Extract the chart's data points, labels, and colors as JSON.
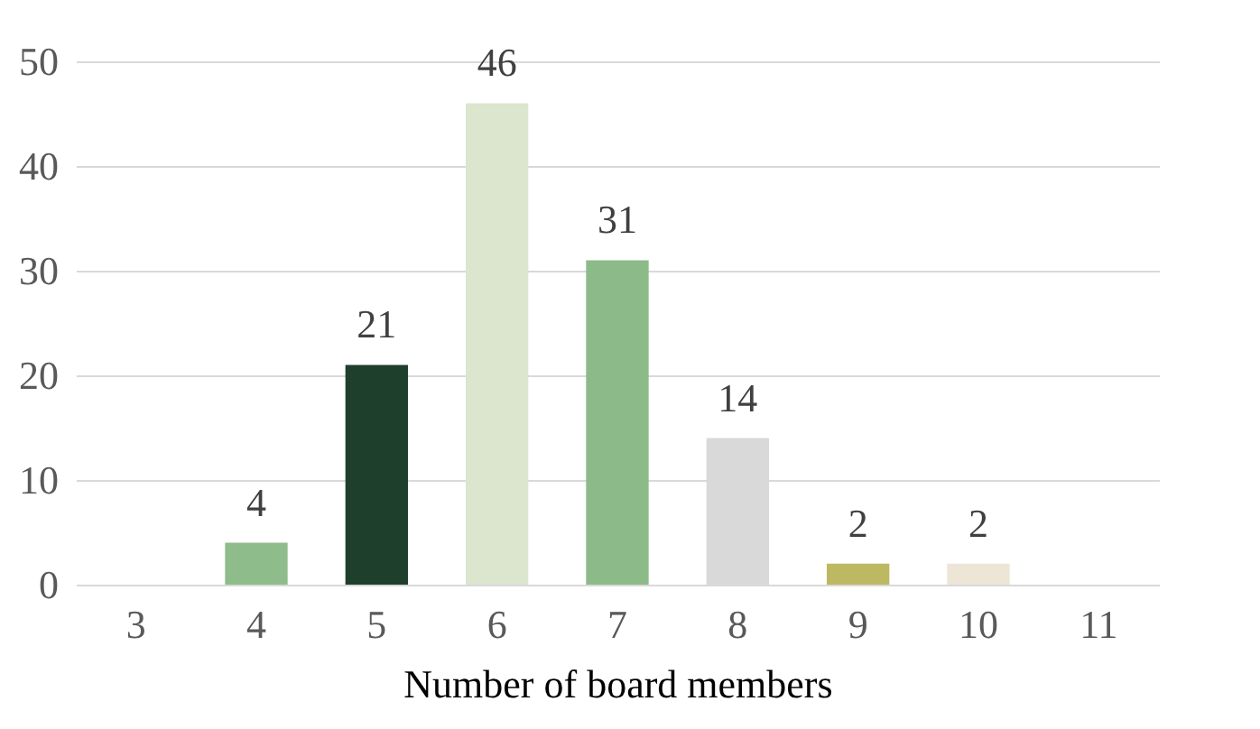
{
  "chart_data": {
    "type": "bar",
    "xlabel": "Number of board members",
    "categories": [
      "3",
      "4",
      "5",
      "6",
      "7",
      "8",
      "9",
      "10",
      "11"
    ],
    "values": [
      0,
      4,
      21,
      46,
      31,
      14,
      2,
      2,
      0
    ],
    "colors": [
      "#8fbc8b",
      "#8fbc8b",
      "#1f3f2d",
      "#dce5cd",
      "#8cbb89",
      "#d9d9d9",
      "#bdb862",
      "#ede5d6",
      "#d9d9d9"
    ],
    "value_labels": [
      null,
      "4",
      "21",
      "46",
      "31",
      "14",
      "2",
      "2",
      null
    ],
    "ylim": [
      0,
      50
    ],
    "yticks": [
      0,
      10,
      20,
      30,
      40,
      50
    ],
    "grid": "y",
    "legend": false
  }
}
